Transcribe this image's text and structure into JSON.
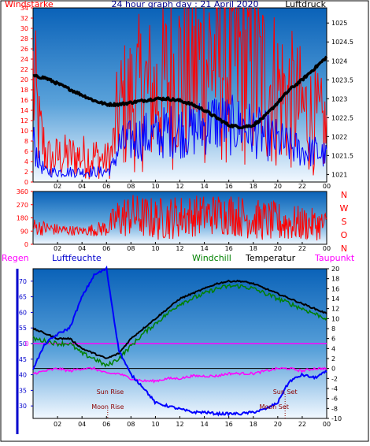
{
  "chart_data": [
    {
      "type": "line",
      "title": "24 hour graph day : 21 April 2020",
      "left_axis_label": "Windstärke",
      "right_axis_label": "Luftdruck",
      "x_ticks": [
        "02",
        "04",
        "06",
        "08",
        "10",
        "12",
        "14",
        "16",
        "18",
        "20",
        "22",
        "00"
      ],
      "ylim_left": [
        0,
        34
      ],
      "yticks_left": [
        "0",
        "2",
        "4",
        "6",
        "8",
        "10",
        "12",
        "14",
        "16",
        "18",
        "20",
        "22",
        "24",
        "26",
        "28",
        "30",
        "32",
        "34"
      ],
      "ylim_right": [
        1020.8,
        1025.4
      ],
      "yticks_right": [
        "1021",
        "1021.5",
        "1022",
        "1022.5",
        "1023",
        "1023.5",
        "1024",
        "1024.5",
        "1025"
      ],
      "series": [
        {
          "role": "wind gust",
          "color": "#ff0000",
          "axis": "left",
          "x": [
            0,
            0.5,
            1,
            1.5,
            2,
            3,
            4,
            5,
            6,
            6.5,
            7,
            8,
            9,
            10,
            11,
            12,
            13,
            14,
            15,
            16,
            17,
            18,
            19,
            20,
            21,
            22,
            23,
            24
          ],
          "y": [
            20,
            10,
            6,
            4,
            5,
            5,
            5,
            5,
            4,
            6,
            14,
            16,
            18,
            17,
            20,
            22,
            21,
            24,
            25,
            24,
            24,
            22,
            20,
            18,
            16,
            14,
            12,
            10
          ]
        },
        {
          "role": "wind average",
          "color": "#0000ff",
          "axis": "left",
          "x": [
            0,
            0.5,
            1,
            1.5,
            2,
            3,
            4,
            5,
            6,
            6.5,
            7,
            8,
            9,
            10,
            11,
            12,
            13,
            14,
            15,
            16,
            17,
            18,
            19,
            20,
            21,
            22,
            23,
            24
          ],
          "y": [
            8,
            4,
            2,
            2,
            2,
            2,
            2,
            2,
            2,
            3,
            7,
            8,
            9,
            9,
            10,
            10,
            10,
            11,
            12,
            11,
            11,
            10,
            9,
            8,
            7,
            6,
            6,
            5
          ]
        },
        {
          "role": "air pressure",
          "color": "#000000",
          "axis": "right",
          "x": [
            0,
            1,
            2,
            3,
            4,
            5,
            6,
            7,
            8,
            9,
            10,
            11,
            12,
            13,
            14,
            15,
            16,
            17,
            18,
            19,
            20,
            21,
            22,
            23,
            24
          ],
          "y": [
            1023.6,
            1023.55,
            1023.4,
            1023.25,
            1023.1,
            1022.95,
            1022.85,
            1022.85,
            1022.9,
            1022.95,
            1023.0,
            1023.0,
            1022.95,
            1022.85,
            1022.7,
            1022.5,
            1022.3,
            1022.25,
            1022.3,
            1022.55,
            1022.9,
            1023.25,
            1023.5,
            1023.8,
            1024.1
          ]
        }
      ]
    },
    {
      "type": "line",
      "axis_label": "N W S O N",
      "x_ticks": [
        "02",
        "04",
        "06",
        "08",
        "10",
        "12",
        "14",
        "16",
        "18",
        "20",
        "22",
        "00"
      ],
      "ylim": [
        0,
        360
      ],
      "yticks": [
        "0",
        "90",
        "180",
        "270",
        "360"
      ],
      "direction_letters": [
        "N",
        "W",
        "S",
        "O",
        "N"
      ],
      "series": [
        {
          "role": "wind direction",
          "color": "#ff0000",
          "x": [
            0,
            2,
            4,
            6,
            7,
            8,
            10,
            12,
            14,
            16,
            18,
            20,
            22,
            24
          ],
          "y": [
            120,
            100,
            90,
            110,
            180,
            200,
            170,
            190,
            200,
            210,
            170,
            150,
            140,
            130
          ],
          "spread": [
            60,
            40,
            30,
            60,
            150,
            150,
            150,
            150,
            140,
            150,
            140,
            140,
            120,
            100
          ]
        }
      ]
    },
    {
      "type": "line",
      "legend": [
        "Regen",
        "Luftfeuchte",
        "Windchill",
        "Temperatur",
        "Taupunkt"
      ],
      "x_ticks": [
        "02",
        "04",
        "06",
        "08",
        "10",
        "12",
        "14",
        "16",
        "18",
        "20",
        "22",
        "00"
      ],
      "ylim_left": [
        26,
        74
      ],
      "yticks_left": [
        "30",
        "35",
        "40",
        "45",
        "50",
        "55",
        "60",
        "65",
        "70"
      ],
      "ylim_right": [
        -10,
        20
      ],
      "yticks_right": [
        "-10",
        "-8",
        "-6",
        "-4",
        "-2",
        "0",
        "2",
        "4",
        "6",
        "8",
        "10",
        "12",
        "14",
        "16",
        "18",
        "20"
      ],
      "rain_axis_label": "0",
      "annotations": {
        "sun_rise": "Sun Rise",
        "moon_rise": "Moon Rise",
        "sun_set": "Sun Set",
        "moon_set": "Moon Set"
      },
      "events": {
        "sun_rise": 6.3,
        "moon_rise": 6.1,
        "sun_set": 20.6,
        "moon_set": 19.7
      },
      "series": [
        {
          "name": "Luftfeuchte",
          "color": "#0000ff",
          "axis": "left",
          "x": [
            0,
            1,
            2,
            3,
            4,
            5,
            6,
            7,
            8,
            9,
            10,
            11,
            12,
            13,
            14,
            15,
            16,
            17,
            18,
            19,
            20,
            20.5,
            21,
            22,
            23,
            24
          ],
          "y": [
            42,
            50,
            53,
            55,
            65,
            72,
            74,
            48,
            40,
            36,
            31,
            30,
            29,
            28,
            28,
            27.5,
            27.5,
            27.5,
            28,
            29,
            31,
            35,
            38,
            40,
            39,
            41
          ]
        },
        {
          "name": "Temperatur",
          "color": "#000000",
          "axis": "right",
          "x": [
            0,
            1,
            2,
            3,
            4,
            5,
            6,
            7,
            8,
            9,
            10,
            11,
            12,
            13,
            14,
            15,
            16,
            17,
            18,
            19,
            20,
            21,
            22,
            23,
            24
          ],
          "y": [
            8,
            7,
            6,
            6,
            4,
            3,
            2,
            3,
            6,
            8,
            10,
            12,
            14,
            15,
            16,
            17,
            17.5,
            17.5,
            17,
            16,
            15,
            14,
            13,
            12,
            11
          ]
        },
        {
          "name": "Windchill",
          "color": "#008000",
          "axis": "right",
          "x": [
            0,
            1,
            2,
            3,
            4,
            5,
            6,
            7,
            8,
            9,
            10,
            11,
            12,
            13,
            14,
            15,
            16,
            17,
            18,
            19,
            20,
            21,
            22,
            23,
            24
          ],
          "y": [
            6,
            5.5,
            5,
            5,
            3,
            2,
            0.5,
            2,
            4.5,
            7,
            9,
            11,
            13,
            14,
            15,
            16,
            16.5,
            16.5,
            16,
            15,
            14,
            13,
            12,
            11,
            10
          ]
        },
        {
          "name": "Taupunkt",
          "color": "#ff00ff",
          "axis": "right",
          "x": [
            0,
            1,
            2,
            3,
            4,
            5,
            6,
            7,
            8,
            9,
            10,
            11,
            12,
            13,
            14,
            15,
            16,
            17,
            18,
            19,
            20,
            21,
            22,
            23,
            24
          ],
          "y": [
            -1,
            -0.5,
            0,
            -0.5,
            0,
            0,
            -1,
            -1,
            -2,
            -2.5,
            -2.5,
            -2,
            -2,
            -1.5,
            -1.5,
            -1.5,
            -1,
            -1,
            -1,
            -0.5,
            0,
            0,
            -0.5,
            0,
            0
          ]
        },
        {
          "name": "Regen",
          "color": "#ff00ff",
          "axis": "rain",
          "x": [
            0,
            24
          ],
          "y": [
            0,
            0
          ]
        }
      ]
    }
  ]
}
